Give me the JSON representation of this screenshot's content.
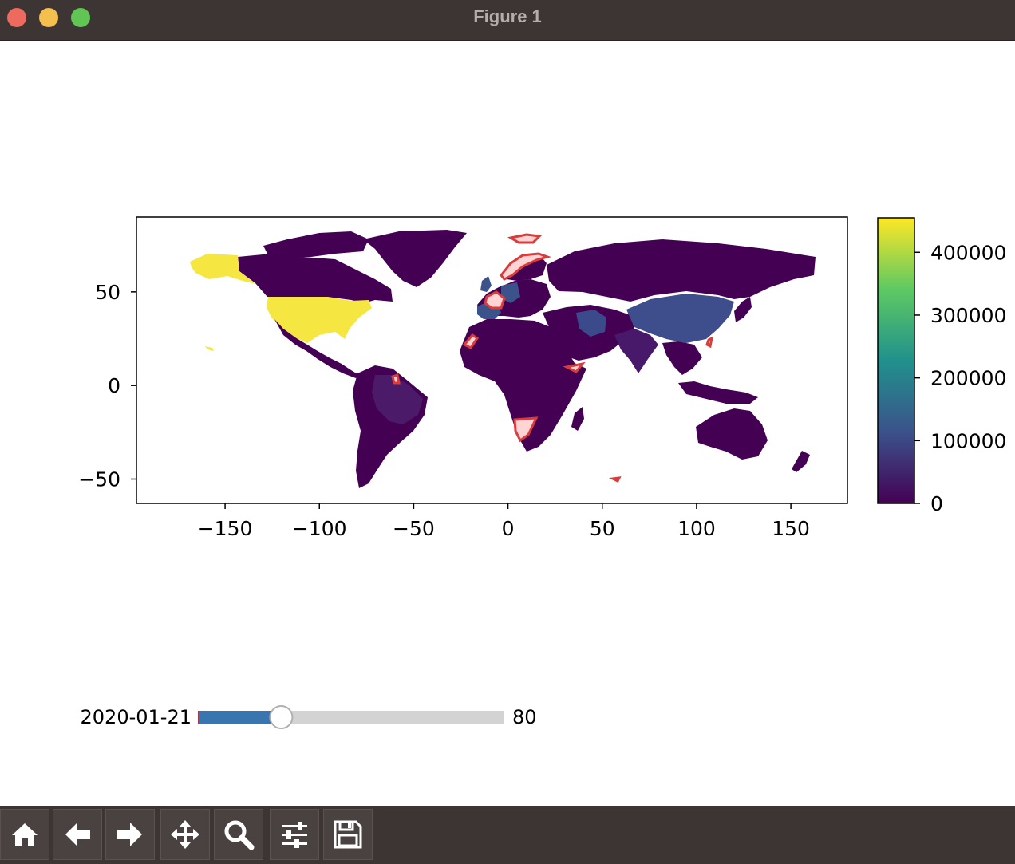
{
  "window": {
    "title": "Figure 1"
  },
  "map": {
    "x_ticks": [
      "−150",
      "−100",
      "−50",
      "0",
      "50",
      "100",
      "150"
    ],
    "x_tick_values": [
      -150,
      -100,
      -50,
      0,
      50,
      100,
      150
    ],
    "y_ticks": [
      "50",
      "0",
      "−50"
    ],
    "y_tick_values": [
      50,
      0,
      -50
    ],
    "xlim": [
      -197,
      180
    ],
    "ylim": [
      -63,
      90
    ],
    "colormap": "viridis"
  },
  "colorbar": {
    "ticks": [
      "400000",
      "300000",
      "200000",
      "100000",
      "0"
    ],
    "tick_values": [
      400000,
      300000,
      200000,
      100000,
      0
    ],
    "range": [
      0,
      455000
    ]
  },
  "slider": {
    "label": "2020-01-21",
    "value_text": "80",
    "fill_fraction": 0.27
  },
  "toolbar": {
    "buttons": [
      "home-icon",
      "back-icon",
      "forward-icon",
      "pan-icon",
      "zoom-icon",
      "configure-icon",
      "save-icon"
    ]
  }
}
